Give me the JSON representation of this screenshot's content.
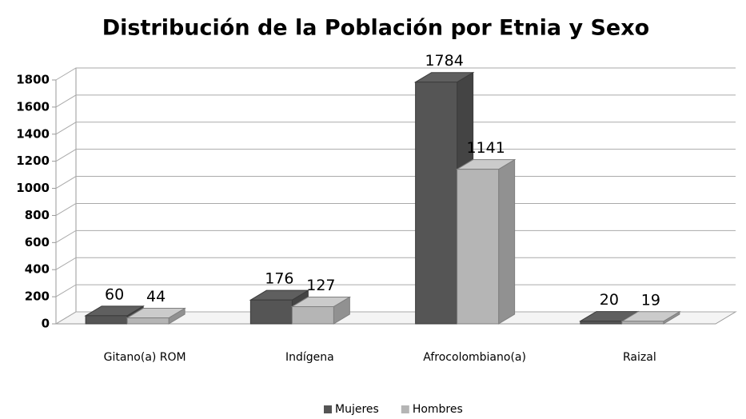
{
  "chart_data": {
    "type": "bar3d",
    "title": "Distribución de la Población por Etnia y Sexo",
    "categories": [
      "Gitano(a) ROM",
      "Indígena",
      "Afrocolombiano(a)",
      "Raizal"
    ],
    "series": [
      {
        "name": "Mujeres",
        "color": "#555555",
        "values": [
          60,
          176,
          1784,
          20
        ]
      },
      {
        "name": "Hombres",
        "color": "#b5b5b5",
        "values": [
          44,
          127,
          1141,
          19
        ]
      }
    ],
    "ylim": [
      0,
      1800
    ],
    "yticks": [
      0,
      200,
      400,
      600,
      800,
      1000,
      1200,
      1400,
      1600,
      1800
    ],
    "grid": true,
    "legend": "bottom"
  }
}
